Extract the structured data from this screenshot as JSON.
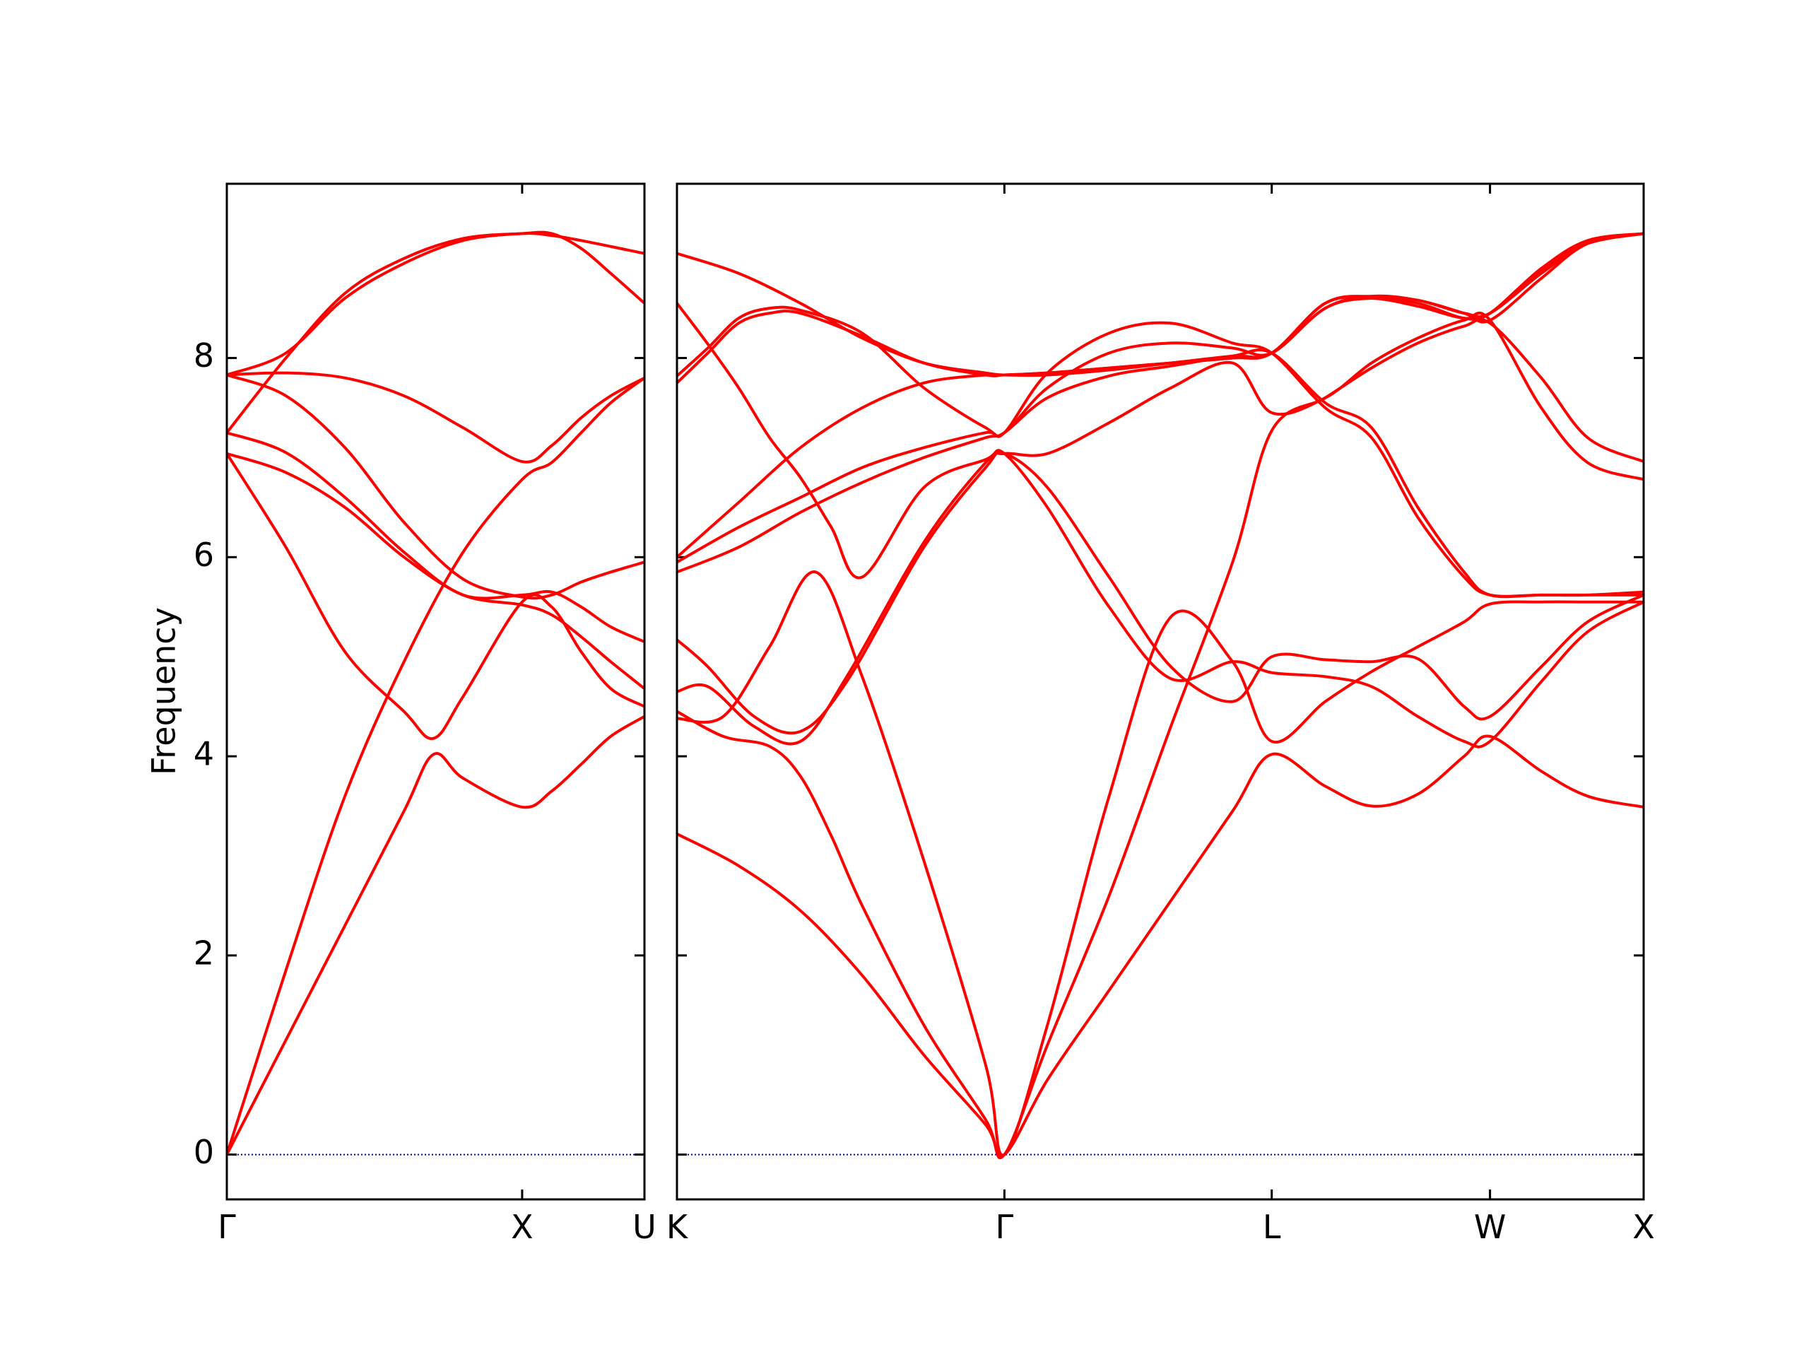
{
  "chart_data": {
    "type": "line",
    "ylabel": "Frequency",
    "ylim": [
      -0.45,
      9.75
    ],
    "yticks": [
      0,
      2,
      4,
      6,
      8
    ],
    "grid": false,
    "legend": "none",
    "colors": {
      "bands": "#ff0000",
      "zero_line": "#0000aa",
      "axes": "#000000"
    },
    "panels": [
      {
        "name": "left",
        "xlim": [
          0,
          1.4142
        ],
        "xticks": [
          {
            "label": "Γ",
            "x": 0
          },
          {
            "label": "X",
            "x": 1.0
          },
          {
            "label": "U",
            "x": 1.4142
          }
        ],
        "bands": [
          {
            "x": [
              0,
              0.2,
              0.4,
              0.6,
              0.7,
              0.8,
              1.0,
              1.1,
              1.2,
              1.3,
              1.4142
            ],
            "y": [
              0,
              1.15,
              2.3,
              3.45,
              4.02,
              3.78,
              3.49,
              3.65,
              3.92,
              4.2,
              4.4
            ]
          },
          {
            "x": [
              0,
              0.2,
              0.4,
              0.6,
              0.8,
              1.0,
              1.1,
              1.2,
              1.3,
              1.4142
            ],
            "y": [
              0,
              1.85,
              3.6,
              4.95,
              6.05,
              6.78,
              6.95,
              7.25,
              7.55,
              7.8
            ]
          },
          {
            "x": [
              0,
              0.2,
              0.4,
              0.6,
              0.7,
              0.8,
              1.0,
              1.1,
              1.2,
              1.3,
              1.4142
            ],
            "y": [
              7.04,
              6.1,
              5.05,
              4.45,
              4.18,
              4.6,
              5.55,
              5.5,
              5.05,
              4.68,
              4.5
            ]
          },
          {
            "x": [
              0,
              0.2,
              0.4,
              0.6,
              0.8,
              1.0,
              1.1,
              1.2,
              1.3,
              1.4142
            ],
            "y": [
              7.04,
              6.85,
              6.5,
              6.0,
              5.62,
              5.52,
              5.42,
              5.2,
              4.95,
              4.68
            ]
          },
          {
            "x": [
              0,
              0.2,
              0.4,
              0.6,
              0.8,
              1.0,
              1.1,
              1.2,
              1.3,
              1.4142
            ],
            "y": [
              7.25,
              7.05,
              6.6,
              6.05,
              5.62,
              5.62,
              5.65,
              5.5,
              5.3,
              5.15
            ]
          },
          {
            "x": [
              0,
              0.2,
              0.4,
              0.6,
              0.8,
              1.0,
              1.1,
              1.2,
              1.3,
              1.4142
            ],
            "y": [
              7.83,
              7.62,
              7.1,
              6.35,
              5.78,
              5.6,
              5.62,
              5.75,
              5.85,
              5.95
            ]
          },
          {
            "x": [
              0,
              0.2,
              0.4,
              0.6,
              0.8,
              1.0,
              1.1,
              1.2,
              1.3,
              1.4142
            ],
            "y": [
              7.83,
              7.85,
              7.8,
              7.62,
              7.3,
              6.96,
              7.12,
              7.4,
              7.62,
              7.8
            ]
          },
          {
            "x": [
              0,
              0.2,
              0.4,
              0.6,
              0.8,
              1.0,
              1.1,
              1.2,
              1.3,
              1.4142
            ],
            "y": [
              7.25,
              8.0,
              8.65,
              9.0,
              9.2,
              9.25,
              9.25,
              9.1,
              8.85,
              8.55
            ]
          },
          {
            "x": [
              0,
              0.2,
              0.4,
              0.6,
              0.8,
              1.0,
              1.1,
              1.2,
              1.3,
              1.4142
            ],
            "y": [
              7.83,
              8.05,
              8.6,
              8.95,
              9.18,
              9.25,
              9.23,
              9.18,
              9.12,
              9.05
            ]
          }
        ]
      },
      {
        "name": "right",
        "xlim": [
          0,
          3.1315
        ],
        "xticks": [
          {
            "label": "K",
            "x": 0
          },
          {
            "label": "Γ",
            "x": 1.0607
          },
          {
            "label": "L",
            "x": 1.9267
          },
          {
            "label": "W",
            "x": 2.6338
          },
          {
            "label": "X",
            "x": 3.1315
          }
        ],
        "bands": [
          {
            "x": [
              0,
              0.2,
              0.4,
              0.6,
              0.8,
              1.0,
              1.0607,
              1.2,
              1.4,
              1.6,
              1.8,
              1.9267,
              2.1,
              2.25,
              2.4,
              2.55,
              2.6338,
              2.8,
              2.95,
              3.1315
            ],
            "y": [
              3.22,
              2.9,
              2.45,
              1.8,
              1.0,
              0.3,
              0,
              0.75,
              1.65,
              2.55,
              3.45,
              4.02,
              3.7,
              3.5,
              3.62,
              4.0,
              4.2,
              3.85,
              3.6,
              3.49
            ]
          },
          {
            "x": [
              0,
              0.15,
              0.3,
              0.4,
              0.5,
              0.6,
              0.8,
              1.0,
              1.0607,
              1.2,
              1.4,
              1.6,
              1.8,
              1.9267,
              2.1,
              2.25,
              2.4,
              2.55,
              2.6338,
              2.8,
              2.95,
              3.1315
            ],
            "y": [
              4.45,
              4.2,
              4.1,
              3.8,
              3.2,
              2.5,
              1.3,
              0.35,
              0,
              1.1,
              2.6,
              4.3,
              5.95,
              7.27,
              7.6,
              7.9,
              8.15,
              8.32,
              8.35,
              7.8,
              7.2,
              6.96
            ]
          },
          {
            "x": [
              0,
              0.15,
              0.3,
              0.45,
              0.6,
              0.8,
              1.0,
              1.0607,
              1.2,
              1.4,
              1.6,
              1.8,
              1.9267,
              2.1,
              2.25,
              2.4,
              2.55,
              2.6338,
              2.8,
              2.95,
              3.1315
            ],
            "y": [
              4.38,
              4.4,
              5.1,
              5.85,
              4.8,
              2.95,
              0.9,
              0,
              1.3,
              3.6,
              5.4,
              4.95,
              4.15,
              4.55,
              4.85,
              5.1,
              5.35,
              5.53,
              5.55,
              5.55,
              5.55
            ]
          },
          {
            "x": [
              0,
              0.1,
              0.2,
              0.3,
              0.4,
              0.5,
              0.6,
              0.8,
              1.0,
              1.0607,
              1.2,
              1.4,
              1.6,
              1.8,
              1.9267,
              2.1,
              2.25,
              2.4,
              2.55,
              2.6338,
              2.8,
              2.95,
              3.1315
            ],
            "y": [
              8.55,
              8.14,
              7.7,
              7.2,
              6.8,
              6.3,
              5.8,
              6.7,
              6.98,
              7.04,
              6.5,
              5.5,
              4.78,
              4.95,
              4.84,
              4.8,
              4.7,
              4.4,
              4.15,
              4.15,
              4.75,
              5.25,
              5.55
            ]
          },
          {
            "x": [
              0,
              0.1,
              0.25,
              0.4,
              0.55,
              0.8,
              1.0,
              1.0607,
              1.2,
              1.4,
              1.6,
              1.8,
              1.9267,
              2.1,
              2.25,
              2.4,
              2.55,
              2.6338,
              2.8,
              2.95,
              3.1315
            ],
            "y": [
              5.17,
              4.9,
              4.4,
              4.25,
              4.75,
              6.1,
              6.9,
              7.04,
              6.7,
              5.8,
              4.9,
              4.55,
              5.0,
              4.97,
              4.95,
              4.98,
              4.5,
              4.4,
              4.9,
              5.35,
              5.62
            ]
          },
          {
            "x": [
              0,
              0.1,
              0.25,
              0.4,
              0.55,
              0.8,
              1.0,
              1.0607,
              1.2,
              1.4,
              1.6,
              1.8,
              1.9267,
              2.1,
              2.25,
              2.4,
              2.55,
              2.6338,
              2.8,
              2.95,
              3.1315
            ],
            "y": [
              4.65,
              4.7,
              4.3,
              4.15,
              4.8,
              6.15,
              6.95,
              7.04,
              7.04,
              7.35,
              7.7,
              7.95,
              7.45,
              7.6,
              7.95,
              8.2,
              8.38,
              8.38,
              7.5,
              6.95,
              6.78
            ]
          },
          {
            "x": [
              0,
              0.2,
              0.4,
              0.6,
              0.8,
              1.0,
              1.0607,
              1.2,
              1.4,
              1.6,
              1.8,
              1.9267,
              2.1,
              2.25,
              2.4,
              2.55,
              2.6338,
              2.8,
              2.95,
              3.1315
            ],
            "y": [
              5.85,
              6.1,
              6.45,
              6.75,
              7.0,
              7.2,
              7.25,
              7.6,
              7.82,
              7.92,
              8.02,
              8.05,
              7.55,
              7.3,
              6.5,
              5.85,
              5.62,
              5.62,
              5.62,
              5.65
            ]
          },
          {
            "x": [
              0,
              0.2,
              0.4,
              0.6,
              0.8,
              1.0,
              1.0607,
              1.2,
              1.4,
              1.6,
              1.8,
              1.9267,
              2.1,
              2.25,
              2.4,
              2.55,
              2.6338,
              2.8,
              2.95,
              3.1315
            ],
            "y": [
              5.95,
              6.3,
              6.6,
              6.9,
              7.1,
              7.25,
              7.25,
              7.85,
              8.25,
              8.35,
              8.15,
              8.05,
              7.5,
              7.2,
              6.4,
              5.8,
              5.62,
              5.62,
              5.62,
              5.62
            ]
          },
          {
            "x": [
              0,
              0.2,
              0.4,
              0.6,
              0.8,
              1.0,
              1.0607,
              1.2,
              1.4,
              1.6,
              1.8,
              1.9267,
              2.1,
              2.25,
              2.4,
              2.55,
              2.6338,
              2.8,
              2.95,
              3.1315
            ],
            "y": [
              6.0,
              6.55,
              7.1,
              7.5,
              7.75,
              7.83,
              7.83,
              7.85,
              7.9,
              7.95,
              8.0,
              8.05,
              8.5,
              8.62,
              8.58,
              8.45,
              8.45,
              8.85,
              9.15,
              9.25
            ]
          },
          {
            "x": [
              0,
              0.1,
              0.2,
              0.3,
              0.4,
              0.6,
              0.8,
              1.0,
              1.0607,
              1.2,
              1.4,
              1.6,
              1.8,
              1.9267,
              2.1,
              2.25,
              2.4,
              2.55,
              2.6338,
              2.8,
              2.95,
              3.1315
            ],
            "y": [
              7.75,
              8.05,
              8.35,
              8.45,
              8.45,
              8.22,
              7.95,
              7.83,
              7.83,
              7.85,
              7.9,
              7.95,
              8.0,
              8.05,
              8.55,
              8.6,
              8.52,
              8.4,
              8.45,
              8.9,
              9.18,
              9.25
            ]
          },
          {
            "x": [
              0,
              0.1,
              0.2,
              0.3,
              0.4,
              0.6,
              0.8,
              1.0,
              1.0607,
              1.2,
              1.4,
              1.6,
              1.8,
              1.9267,
              2.1,
              2.25,
              2.4,
              2.55,
              2.6338,
              2.8,
              2.95,
              3.1315
            ],
            "y": [
              7.82,
              8.1,
              8.4,
              8.5,
              8.48,
              8.25,
              7.7,
              7.3,
              7.25,
              7.7,
              8.05,
              8.15,
              8.1,
              8.05,
              8.5,
              8.6,
              8.55,
              8.4,
              8.45,
              8.88,
              9.15,
              9.25
            ]
          },
          {
            "x": [
              0,
              0.2,
              0.4,
              0.6,
              0.8,
              1.0,
              1.0607,
              1.2,
              1.4,
              1.6,
              1.8,
              1.9267,
              2.1,
              2.25,
              2.4,
              2.55,
              2.6338,
              2.8,
              2.95,
              3.1315
            ],
            "y": [
              9.05,
              8.85,
              8.55,
              8.2,
              7.95,
              7.85,
              7.83,
              7.83,
              7.88,
              7.95,
              8.02,
              8.05,
              8.55,
              8.62,
              8.58,
              8.45,
              8.38,
              8.8,
              9.15,
              9.25
            ]
          }
        ]
      }
    ]
  }
}
